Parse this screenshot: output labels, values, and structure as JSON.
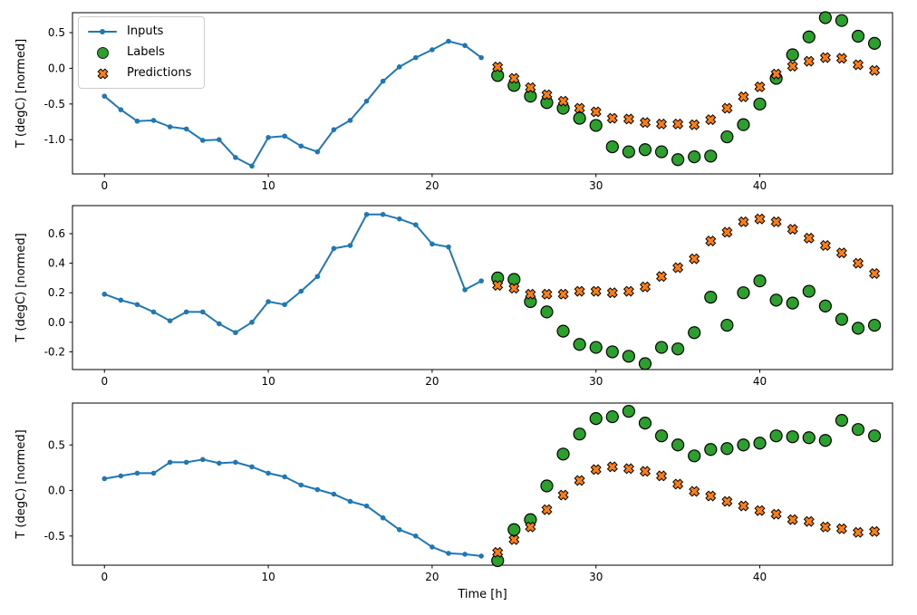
{
  "figure": {
    "background": "#ffffff",
    "xlabel": "Time [h]",
    "ylabel": "T (degC) [normed]"
  },
  "colors": {
    "inputs": "#1f77b4",
    "labels": "#2ca02c",
    "predictions": "#ff7f0e",
    "marker_edge": "#000000",
    "spine": "#000000",
    "tick_text": "#000000",
    "legend_border": "#cccccc"
  },
  "legend": {
    "position": "upper-left",
    "items": [
      {
        "label": "Inputs",
        "marker": "line-dot",
        "color": "#1f77b4"
      },
      {
        "label": "Labels",
        "marker": "circle",
        "color": "#2ca02c"
      },
      {
        "label": "Predictions",
        "marker": "x",
        "color": "#ff7f0e"
      }
    ]
  },
  "chart_data": [
    {
      "type": "line",
      "title": "",
      "xlabel": "",
      "ylabel": "T (degC) [normed]",
      "xlim": [
        -1.95,
        48.1
      ],
      "ylim": [
        -1.48,
        0.78
      ],
      "xticks": [
        0,
        10,
        20,
        30,
        40
      ],
      "yticks": [
        0.5,
        0.0,
        -0.5,
        -1.0
      ],
      "grid": false,
      "series": [
        {
          "name": "Inputs",
          "type": "line",
          "color": "#1f77b4",
          "x": [
            0,
            1,
            2,
            3,
            4,
            5,
            6,
            7,
            8,
            9,
            10,
            11,
            12,
            13,
            14,
            15,
            16,
            17,
            18,
            19,
            20,
            21,
            22,
            23
          ],
          "values": [
            -0.39,
            -0.58,
            -0.74,
            -0.73,
            -0.82,
            -0.85,
            -1.01,
            -1.0,
            -1.25,
            -1.37,
            -0.97,
            -0.95,
            -1.09,
            -1.17,
            -0.86,
            -0.73,
            -0.46,
            -0.18,
            0.02,
            0.15,
            0.26,
            0.38,
            0.32,
            0.15
          ]
        },
        {
          "name": "Labels",
          "type": "scatter_circle",
          "color": "#2ca02c",
          "x": [
            24,
            25,
            26,
            27,
            28,
            29,
            30,
            31,
            32,
            33,
            34,
            35,
            36,
            37,
            38,
            39,
            40,
            41,
            42,
            43,
            44,
            45,
            46,
            47
          ],
          "values": [
            -0.1,
            -0.24,
            -0.39,
            -0.48,
            -0.56,
            -0.7,
            -0.8,
            -1.1,
            -1.17,
            -1.14,
            -1.17,
            -1.28,
            -1.24,
            -1.23,
            -0.96,
            -0.79,
            -0.5,
            -0.14,
            0.19,
            0.44,
            0.71,
            0.67,
            0.45,
            0.35
          ]
        },
        {
          "name": "Predictions",
          "type": "scatter_x",
          "color": "#ff7f0e",
          "x": [
            24,
            25,
            26,
            27,
            28,
            29,
            30,
            31,
            32,
            33,
            34,
            35,
            36,
            37,
            38,
            39,
            40,
            41,
            42,
            43,
            44,
            45,
            46,
            47
          ],
          "values": [
            0.02,
            -0.14,
            -0.27,
            -0.37,
            -0.46,
            -0.56,
            -0.61,
            -0.7,
            -0.71,
            -0.76,
            -0.78,
            -0.78,
            -0.79,
            -0.72,
            -0.56,
            -0.4,
            -0.26,
            -0.08,
            0.03,
            0.1,
            0.15,
            0.14,
            0.05,
            -0.03
          ]
        }
      ]
    },
    {
      "type": "line",
      "title": "",
      "xlabel": "",
      "ylabel": "T (degC) [normed]",
      "xlim": [
        -1.95,
        48.1
      ],
      "ylim": [
        -0.32,
        0.79
      ],
      "xticks": [
        0,
        10,
        20,
        30,
        40
      ],
      "yticks": [
        0.6,
        0.4,
        0.2,
        0.0,
        -0.2
      ],
      "grid": false,
      "series": [
        {
          "name": "Inputs",
          "type": "line",
          "color": "#1f77b4",
          "x": [
            0,
            1,
            2,
            3,
            4,
            5,
            6,
            7,
            8,
            9,
            10,
            11,
            12,
            13,
            14,
            15,
            16,
            17,
            18,
            19,
            20,
            21,
            22,
            23
          ],
          "values": [
            0.19,
            0.15,
            0.12,
            0.07,
            0.01,
            0.07,
            0.07,
            -0.01,
            -0.07,
            0.0,
            0.14,
            0.12,
            0.21,
            0.31,
            0.5,
            0.52,
            0.73,
            0.73,
            0.7,
            0.66,
            0.53,
            0.51,
            0.22,
            0.28
          ]
        },
        {
          "name": "Labels",
          "type": "scatter_circle",
          "color": "#2ca02c",
          "x": [
            24,
            25,
            26,
            27,
            28,
            29,
            30,
            31,
            32,
            33,
            34,
            35,
            36,
            37,
            38,
            39,
            40,
            41,
            42,
            43,
            44,
            45,
            46,
            47
          ],
          "values": [
            0.3,
            0.29,
            0.14,
            0.07,
            -0.06,
            -0.15,
            -0.17,
            -0.2,
            -0.23,
            -0.28,
            -0.17,
            -0.18,
            -0.07,
            0.17,
            -0.02,
            0.2,
            0.28,
            0.15,
            0.13,
            0.21,
            0.11,
            0.02,
            -0.04,
            -0.02
          ]
        },
        {
          "name": "Predictions",
          "type": "scatter_x",
          "color": "#ff7f0e",
          "x": [
            24,
            25,
            26,
            27,
            28,
            29,
            30,
            31,
            32,
            33,
            34,
            35,
            36,
            37,
            38,
            39,
            40,
            41,
            42,
            43,
            44,
            45,
            46,
            47
          ],
          "values": [
            0.25,
            0.23,
            0.19,
            0.19,
            0.19,
            0.21,
            0.21,
            0.2,
            0.21,
            0.24,
            0.31,
            0.37,
            0.43,
            0.55,
            0.61,
            0.68,
            0.7,
            0.68,
            0.63,
            0.57,
            0.52,
            0.47,
            0.4,
            0.33
          ]
        }
      ]
    },
    {
      "type": "line",
      "title": "",
      "xlabel": "Time [h]",
      "ylabel": "T (degC) [normed]",
      "xlim": [
        -1.95,
        48.1
      ],
      "ylim": [
        -0.82,
        0.96
      ],
      "xticks": [
        0,
        10,
        20,
        30,
        40
      ],
      "yticks": [
        0.5,
        0.0,
        -0.5
      ],
      "grid": false,
      "series": [
        {
          "name": "Inputs",
          "type": "line",
          "color": "#1f77b4",
          "x": [
            0,
            1,
            2,
            3,
            4,
            5,
            6,
            7,
            8,
            9,
            10,
            11,
            12,
            13,
            14,
            15,
            16,
            17,
            18,
            19,
            20,
            21,
            22,
            23
          ],
          "values": [
            0.13,
            0.16,
            0.19,
            0.19,
            0.31,
            0.31,
            0.34,
            0.3,
            0.31,
            0.26,
            0.19,
            0.15,
            0.06,
            0.01,
            -0.04,
            -0.12,
            -0.17,
            -0.3,
            -0.43,
            -0.5,
            -0.62,
            -0.69,
            -0.7,
            -0.72
          ]
        },
        {
          "name": "Labels",
          "type": "scatter_circle",
          "color": "#2ca02c",
          "x": [
            24,
            25,
            26,
            27,
            28,
            29,
            30,
            31,
            32,
            33,
            34,
            35,
            36,
            37,
            38,
            39,
            40,
            41,
            42,
            43,
            44,
            45,
            46,
            47
          ],
          "values": [
            -0.77,
            -0.43,
            -0.32,
            0.05,
            0.4,
            0.62,
            0.79,
            0.81,
            0.87,
            0.74,
            0.6,
            0.5,
            0.38,
            0.45,
            0.46,
            0.5,
            0.52,
            0.6,
            0.59,
            0.58,
            0.55,
            0.77,
            0.67,
            0.6
          ]
        },
        {
          "name": "Predictions",
          "type": "scatter_x",
          "color": "#ff7f0e",
          "x": [
            24,
            25,
            26,
            27,
            28,
            29,
            30,
            31,
            32,
            33,
            34,
            35,
            36,
            37,
            38,
            39,
            40,
            41,
            42,
            43,
            44,
            45,
            46,
            47
          ],
          "values": [
            -0.68,
            -0.54,
            -0.4,
            -0.21,
            -0.05,
            0.11,
            0.23,
            0.26,
            0.24,
            0.21,
            0.16,
            0.07,
            -0.01,
            -0.06,
            -0.12,
            -0.17,
            -0.22,
            -0.26,
            -0.32,
            -0.34,
            -0.4,
            -0.42,
            -0.46,
            -0.45
          ]
        }
      ]
    }
  ]
}
